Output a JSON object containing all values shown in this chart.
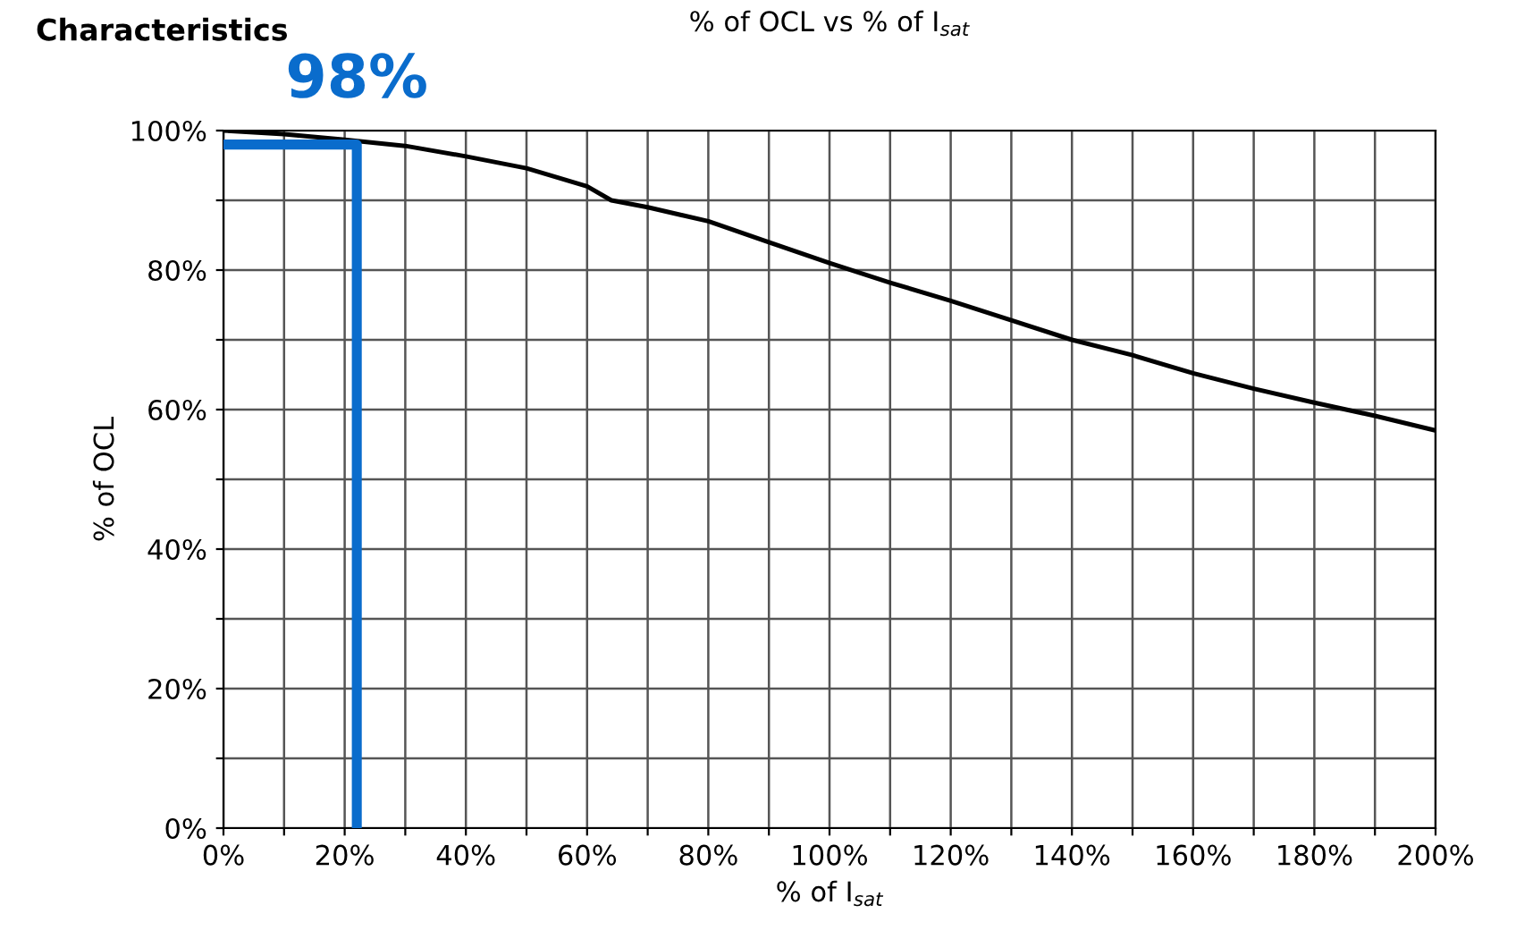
{
  "chart_data": {
    "type": "line",
    "title": "% of OCL vs % of I$_{sat}$",
    "xlabel": "% of I$_{sat}$",
    "ylabel": "% of OCL",
    "annotations": [
      "Characteristics",
      {
        "text": "98%",
        "x": 22,
        "y": 98
      }
    ],
    "series": [
      {
        "color": "#000000",
        "x": [
          0,
          10,
          20,
          30,
          40,
          50,
          60,
          64,
          70,
          80,
          90,
          100,
          110,
          120,
          130,
          140,
          150,
          160,
          170,
          180,
          190,
          200
        ],
        "values": [
          100,
          99.5,
          98.7,
          97.8,
          96.3,
          94.6,
          92,
          90,
          89,
          87,
          84,
          81,
          78.2,
          75.6,
          72.8,
          70,
          67.8,
          65.2,
          63,
          61,
          59.1,
          57
        ]
      },
      {
        "color": "#0a6ccc",
        "x": [
          0,
          22,
          22
        ],
        "values": [
          98,
          98,
          0
        ]
      }
    ],
    "xlim": [
      0,
      200
    ],
    "ylim": [
      0,
      100
    ],
    "xticks": [
      {
        "value": 0,
        "label": "0%"
      },
      {
        "value": 10,
        "label": null
      },
      {
        "value": 20,
        "label": "20%"
      },
      {
        "value": 30,
        "label": null
      },
      {
        "value": 40,
        "label": "40%"
      },
      {
        "value": 50,
        "label": null
      },
      {
        "value": 60,
        "label": "60%"
      },
      {
        "value": 70,
        "label": null
      },
      {
        "value": 80,
        "label": "80%"
      },
      {
        "value": 90,
        "label": null
      },
      {
        "value": 100,
        "label": "100%"
      },
      {
        "value": 110,
        "label": null
      },
      {
        "value": 120,
        "label": "120%"
      },
      {
        "value": 130,
        "label": null
      },
      {
        "value": 140,
        "label": "140%"
      },
      {
        "value": 150,
        "label": null
      },
      {
        "value": 160,
        "label": "160%"
      },
      {
        "value": 170,
        "label": null
      },
      {
        "value": 180,
        "label": "180%"
      },
      {
        "value": 190,
        "label": null
      },
      {
        "value": 200,
        "label": "200%"
      }
    ],
    "yticks": [
      {
        "value": 0,
        "label": "0%"
      },
      {
        "value": 10,
        "label": null
      },
      {
        "value": 20,
        "label": "20%"
      },
      {
        "value": 30,
        "label": null
      },
      {
        "value": 40,
        "label": "40%"
      },
      {
        "value": 50,
        "label": null
      },
      {
        "value": 60,
        "label": "60%"
      },
      {
        "value": 70,
        "label": null
      },
      {
        "value": 80,
        "label": "80%"
      },
      {
        "value": 90,
        "label": null
      },
      {
        "value": 100,
        "label": "100%"
      }
    ],
    "grid": true,
    "legend": false,
    "marker": "none",
    "line_style": "solid"
  }
}
